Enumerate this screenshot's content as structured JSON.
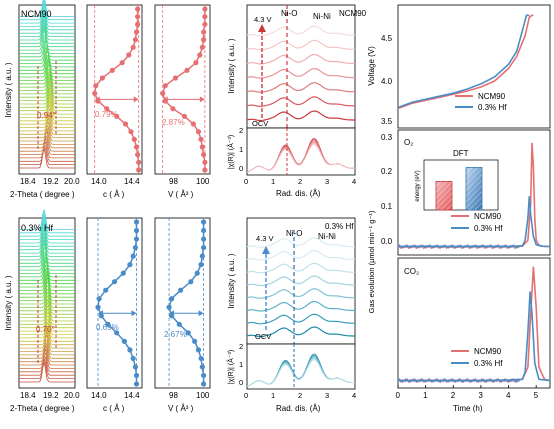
{
  "colors": {
    "red": "#e66f71",
    "red_dark": "#c9393c",
    "blue": "#4a8cc7",
    "blue_dark": "#2b6ea8",
    "panel_bg": "#ffffff"
  },
  "chart_data": [
    {
      "id": "xrd_ncm90",
      "type": "line",
      "label": "NCM90",
      "ylabel": "Intensity ( a.u. )",
      "xlabel": "2-Theta ( degree )",
      "xticks": [
        "18.4",
        "19.2",
        "20.0"
      ],
      "xlim": [
        18.2,
        20.0
      ],
      "peak_label": "0.94°",
      "annotation": "waterfall of in-situ XRD patterns, colored red (bottom) to cyan (top)"
    },
    {
      "id": "c_ncm90",
      "type": "scatter",
      "xlabel": "c ( Å )",
      "xticks": [
        "14.0",
        "14.4"
      ],
      "xlim": [
        13.95,
        14.45
      ],
      "change_label": "0.79%",
      "x": [
        14.42,
        14.42,
        14.41,
        14.4,
        14.38,
        14.35,
        14.3,
        14.22,
        14.13,
        14.05,
        14.02,
        14.03,
        14.09,
        14.18,
        14.27,
        14.33,
        14.37,
        14.39,
        14.4,
        14.41,
        14.41,
        14.41
      ]
    },
    {
      "id": "v_ncm90",
      "type": "scatter",
      "xlabel": "V ( Å³ )",
      "xticks": [
        "98",
        "100"
      ],
      "xlim": [
        96.5,
        100.8
      ],
      "change_label": "2.87%",
      "x": [
        100.4,
        100.4,
        100.3,
        100.2,
        100.1,
        99.9,
        99.5,
        98.8,
        97.9,
        97.3,
        97.1,
        97.3,
        98.1,
        99.0,
        99.7,
        100.0,
        100.2,
        100.3,
        100.3,
        100.4,
        100.4,
        100.4
      ]
    },
    {
      "id": "xrd_hf",
      "type": "line",
      "label": "0.3% Hf",
      "ylabel": "Intensity ( a.u. )",
      "xlabel": "2-Theta ( degree )",
      "xticks": [
        "18.4",
        "19.2",
        "20.0"
      ],
      "xlim": [
        18.2,
        20.0
      ],
      "peak_label": "0.70°"
    },
    {
      "id": "c_hf",
      "type": "scatter",
      "xlabel": "c ( Å )",
      "xticks": [
        "14.0",
        "14.4"
      ],
      "xlim": [
        13.95,
        14.45
      ],
      "change_label": "0.69%",
      "x": [
        14.4,
        14.4,
        14.39,
        14.37,
        14.34,
        14.29,
        14.22,
        14.14,
        14.08,
        14.05,
        14.06,
        14.12,
        14.2,
        14.28,
        14.34,
        14.37,
        14.39,
        14.4,
        14.4,
        14.4
      ]
    },
    {
      "id": "v_hf",
      "type": "scatter",
      "xlabel": "V ( Å³ )",
      "xticks": [
        "98",
        "100"
      ],
      "xlim": [
        96.5,
        100.8
      ],
      "change_label": "2.67%",
      "x": [
        100.3,
        100.3,
        100.2,
        100.1,
        99.9,
        99.6,
        99.1,
        98.4,
        97.8,
        97.6,
        97.8,
        98.5,
        99.3,
        99.8,
        100.1,
        100.2,
        100.3,
        100.3,
        100.3,
        100.3
      ]
    },
    {
      "id": "xas_ncm90",
      "type": "line",
      "label": "NCM90",
      "ylabel": "Intensity ( a.u. )",
      "voltage_top": "4.3 V",
      "voltage_bottom": "OCV",
      "peak1": "Ni-O",
      "peak2": "Ni-Ni",
      "xlim": [
        0,
        4
      ]
    },
    {
      "id": "chi_ncm90",
      "type": "line",
      "ylabel": "|χ(R)| (Å⁻³)",
      "xlabel": "Rad. dis. (Å)",
      "xticks": [
        "0",
        "1",
        "2",
        "3",
        "4"
      ],
      "yticks": [
        "0",
        "1",
        "2"
      ],
      "xlim": [
        0,
        4
      ],
      "ylim": [
        -0.3,
        2
      ]
    },
    {
      "id": "xas_hf",
      "type": "line",
      "label": "0.3% Hf",
      "ylabel": "Intensity ( a.u. )",
      "voltage_top": "4.3 V",
      "voltage_bottom": "OCV",
      "peak1": "Ni-O",
      "peak2": "Ni-Ni",
      "xlim": [
        0,
        4
      ]
    },
    {
      "id": "chi_hf",
      "type": "line",
      "ylabel": "|χ(R)| (Å⁻³)",
      "xlabel": "Rad. dis. (Å)",
      "xticks": [
        "0",
        "1",
        "2",
        "3",
        "4"
      ],
      "yticks": [
        "0",
        "1",
        "2"
      ],
      "xlim": [
        0,
        4
      ],
      "ylim": [
        -0.3,
        2
      ]
    },
    {
      "id": "voltage",
      "type": "line",
      "ylabel": "Voltage (V)",
      "yticks": [
        "3.5",
        "4.0",
        "4.5"
      ],
      "ylim": [
        3.5,
        4.7
      ],
      "legend": "bottom-right",
      "series": [
        {
          "name": "NCM90",
          "color": "#e66f71",
          "t": [
            0,
            0.5,
            1,
            1.5,
            2,
            2.5,
            3,
            3.5,
            4,
            4.3,
            4.6,
            4.75,
            4.85,
            4.9
          ],
          "v": [
            3.69,
            3.74,
            3.77,
            3.8,
            3.83,
            3.86,
            3.9,
            3.96,
            4.08,
            4.2,
            4.4,
            4.58,
            4.6,
            4.6
          ]
        },
        {
          "name": "0.3% Hf",
          "color": "#4a8cc7",
          "t": [
            0,
            0.5,
            1,
            1.5,
            2,
            2.5,
            3,
            3.5,
            4,
            4.3,
            4.5,
            4.65,
            4.75
          ],
          "v": [
            3.7,
            3.75,
            3.78,
            3.81,
            3.84,
            3.88,
            3.93,
            4.0,
            4.12,
            4.25,
            4.45,
            4.6,
            4.6
          ]
        }
      ]
    },
    {
      "id": "o2",
      "type": "line",
      "gas": "O₂",
      "yticks": [
        "0.0",
        "0.1",
        "0.2",
        "0.3"
      ],
      "ylim": [
        -0.02,
        0.32
      ],
      "legend": "bottom-right",
      "series": [
        {
          "name": "NCM90",
          "color": "#e66f71",
          "t": [
            0,
            1,
            2,
            3,
            4,
            4.5,
            4.7,
            4.8,
            4.85,
            4.9,
            4.95,
            5.0,
            5.1,
            5.3,
            5.5
          ],
          "v": [
            0.002,
            0.003,
            0.002,
            0.003,
            0.003,
            0.004,
            0.02,
            0.12,
            0.285,
            0.22,
            0.08,
            0.02,
            0.006,
            0.003,
            0.003
          ]
        },
        {
          "name": "0.3% Hf",
          "color": "#4a8cc7",
          "t": [
            0,
            1,
            2,
            3,
            4,
            4.5,
            4.6,
            4.7,
            4.75,
            4.8,
            4.9,
            5.0,
            5.2,
            5.5
          ],
          "v": [
            0.003,
            0.004,
            0.003,
            0.004,
            0.003,
            0.005,
            0.02,
            0.08,
            0.14,
            0.09,
            0.03,
            0.008,
            0.004,
            0.003
          ]
        }
      ],
      "inset": {
        "title": "DFT",
        "ylabel": "energy (eV)",
        "categories": [
          "NCM90",
          "0.3% Hf"
        ],
        "values": [
          1.55,
          2.3
        ],
        "ylim": [
          0,
          2.6
        ]
      }
    },
    {
      "id": "co2",
      "type": "line",
      "gas": "CO₂",
      "legend": "bottom-right",
      "series": [
        {
          "name": "NCM90",
          "color": "#e66f71",
          "t": [
            0,
            1,
            2,
            3,
            4,
            4.5,
            4.7,
            4.8,
            4.9,
            5.0,
            5.1,
            5.3,
            5.5
          ],
          "v": [
            0.01,
            0.01,
            0.01,
            0.01,
            0.015,
            0.02,
            0.12,
            0.55,
            0.93,
            0.6,
            0.12,
            0.02,
            0.01
          ]
        },
        {
          "name": "0.3% Hf",
          "color": "#4a8cc7",
          "t": [
            0,
            1,
            2,
            3,
            4,
            4.5,
            4.6,
            4.7,
            4.78,
            4.85,
            4.95,
            5.1,
            5.5
          ],
          "v": [
            0.01,
            0.01,
            0.01,
            0.01,
            0.015,
            0.02,
            0.08,
            0.4,
            0.73,
            0.55,
            0.15,
            0.02,
            0.01
          ]
        }
      ]
    }
  ],
  "right_col": {
    "gas_ylabel": "Gas evolution (μmol min⁻¹ g⁻¹)",
    "xlabel": "Time (h)",
    "xticks": [
      "0",
      "1",
      "2",
      "3",
      "4",
      "5"
    ],
    "xlim": [
      0,
      5.5
    ]
  }
}
